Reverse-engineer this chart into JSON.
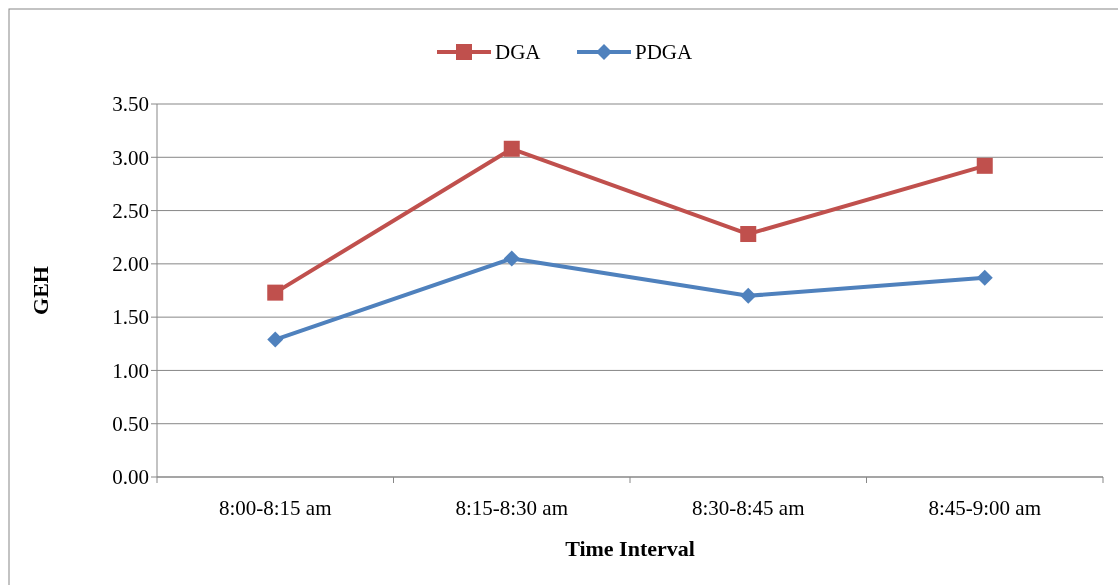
{
  "chart_data": {
    "type": "line",
    "xlabel": "Time Interval",
    "ylabel": "GEH",
    "categories": [
      "8:00-8:15 am",
      "8:15-8:30 am",
      "8:30-8:45 am",
      "8:45-9:00 am"
    ],
    "series": [
      {
        "name": "DGA",
        "color": "#c0504d",
        "marker": "square",
        "values": [
          1.73,
          3.08,
          2.28,
          2.92
        ]
      },
      {
        "name": "PDGA",
        "color": "#4f81bd",
        "marker": "diamond",
        "values": [
          1.29,
          2.05,
          1.7,
          1.87
        ]
      }
    ],
    "ylim": [
      0,
      3.5
    ],
    "yticks": [
      {
        "value": 0,
        "label": "0.00"
      },
      {
        "value": 0.5,
        "label": "0.50"
      },
      {
        "value": 1,
        "label": "1.00"
      },
      {
        "value": 1.5,
        "label": "1.50"
      },
      {
        "value": 2,
        "label": "2.00"
      },
      {
        "value": 2.5,
        "label": "2.50"
      },
      {
        "value": 3,
        "label": "3.00"
      },
      {
        "value": 3.5,
        "label": "3.50"
      }
    ],
    "grid": "y",
    "legend": "top"
  }
}
